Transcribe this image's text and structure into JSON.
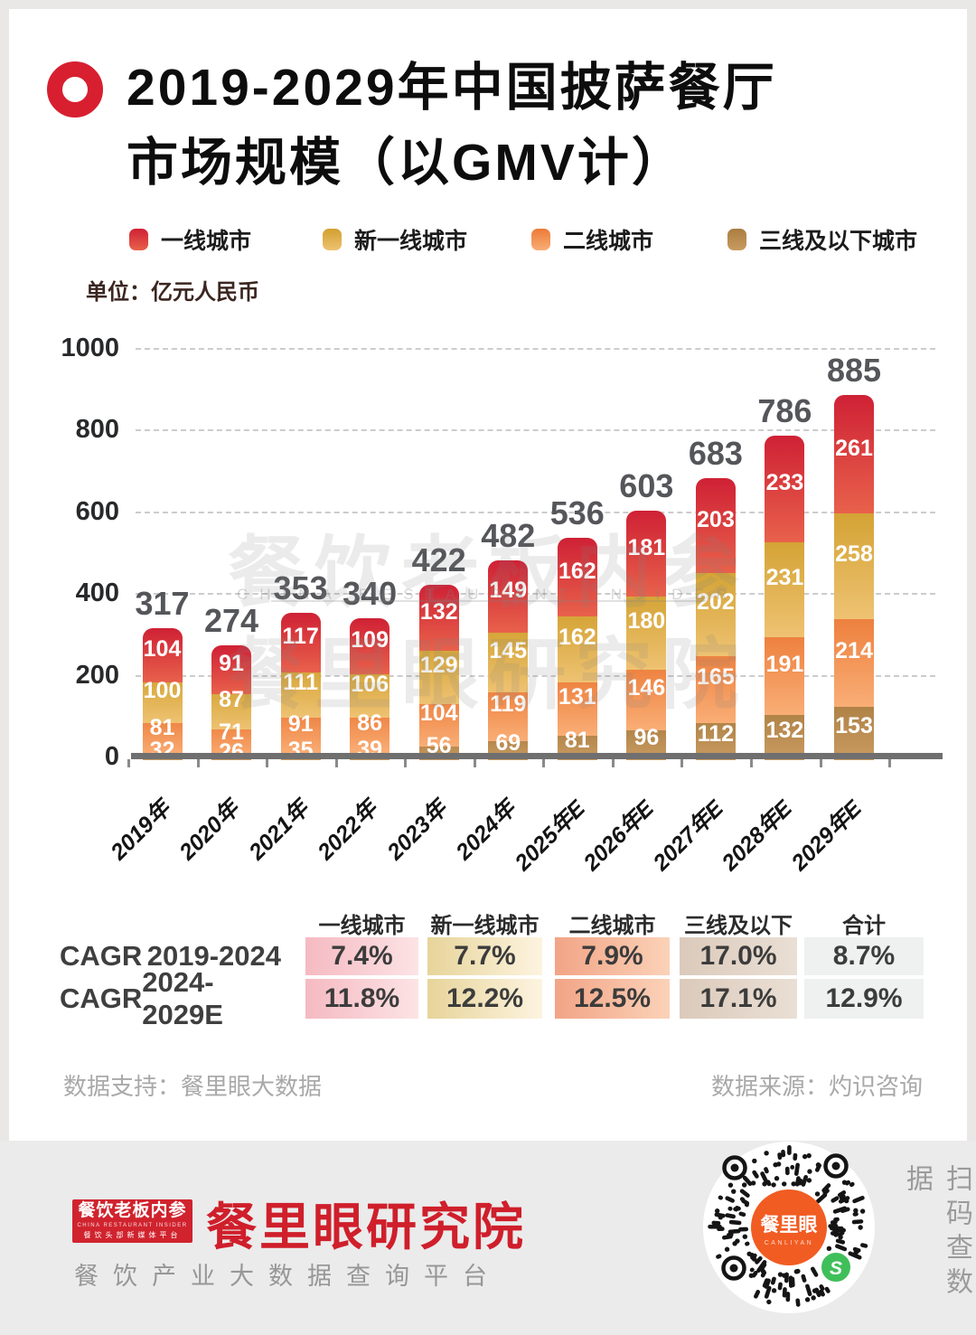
{
  "title": {
    "line1": "2019-2029年中国披萨餐厅",
    "line2": "市场规模（以GMV计）"
  },
  "unit_label": "单位：亿元人民币",
  "chart_data": {
    "type": "bar",
    "stacked": true,
    "title": "2019-2029年中国披萨餐厅市场规模（以GMV计）",
    "ylabel": "亿元人民币",
    "categories": [
      "2019年",
      "2020年",
      "2021年",
      "2022年",
      "2023年",
      "2024年",
      "2025年E",
      "2026年E",
      "2027年E",
      "2028年E",
      "2029年E"
    ],
    "series": [
      {
        "name": "一线城市",
        "color_top": "#cf2135",
        "color_bottom": "#e8614b",
        "values": [
          104,
          91,
          117,
          109,
          132,
          149,
          162,
          181,
          203,
          233,
          261
        ]
      },
      {
        "name": "新一线城市",
        "color_top": "#d1a02e",
        "color_bottom": "#eec272",
        "values": [
          100,
          87,
          111,
          106,
          129,
          145,
          162,
          180,
          202,
          231,
          258
        ]
      },
      {
        "name": "二线城市",
        "color_top": "#ec7a37",
        "color_bottom": "#f9ae76",
        "values": [
          81,
          71,
          91,
          86,
          104,
          119,
          131,
          146,
          165,
          191,
          214
        ]
      },
      {
        "name": "三线及以下城市",
        "color_top": "#aa7d41",
        "color_bottom": "#c99b61",
        "values": [
          32,
          26,
          35,
          39,
          56,
          69,
          81,
          96,
          112,
          132,
          153
        ]
      }
    ],
    "totals": [
      317,
      274,
      353,
      340,
      422,
      482,
      536,
      603,
      683,
      786,
      885
    ],
    "ylim": [
      0,
      1000
    ],
    "yticks": [
      0,
      200,
      400,
      600,
      800,
      1000
    ],
    "grid": "horizontal-dashed",
    "legend_position": "top"
  },
  "watermark": {
    "line1": "餐饮老板内参",
    "latin": "CHINA RESTAURANT INSIDER",
    "line2": "餐里眼研究院"
  },
  "table": {
    "headers": [
      "一线城市",
      "新一线城市",
      "二线城市",
      "三线及以下城市",
      "合计"
    ],
    "col_colors": [
      [
        "#f5bac2",
        "#fce3e5"
      ],
      [
        "#e7d49a",
        "#fdf4e0"
      ],
      [
        "#f2a486",
        "#fbd2b8"
      ],
      [
        "#dbcabb",
        "#eadfd5"
      ],
      [
        "#eef1ef",
        "#eef1ef"
      ]
    ],
    "rows": [
      {
        "prefix": "CAGR",
        "range": "2019-2024",
        "values": [
          "7.4%",
          "7.7%",
          "7.9%",
          "17.0%",
          "8.7%"
        ]
      },
      {
        "prefix": "CAGR",
        "range": "2024-2029E",
        "values": [
          "11.8%",
          "12.2%",
          "12.5%",
          "17.1%",
          "12.9%"
        ]
      }
    ]
  },
  "footer": {
    "left": "数据支持：餐里眼大数据",
    "right": "数据来源：灼识咨询"
  },
  "bottom_bar": {
    "logo_box": {
      "line1": "餐饮老板内参",
      "line2": "CHINA RESTAURANT INSIDER",
      "line3": "餐饮头部新媒体平台"
    },
    "brand": "餐里眼研究院",
    "tagline": "餐饮产业大数据查询平台",
    "qr": {
      "center_text": "餐里眼",
      "center_sub": "CANLIYAN"
    },
    "scan_label": "扫码查数据"
  },
  "colors": {
    "accent_red": "#d71f30",
    "brand_red": "#cf1f2b",
    "axis": "#6f6f6f",
    "grid": "#cccccc",
    "total_label": "#55565a",
    "band_bg": "#ebebeb",
    "qr_center": "#f15c22",
    "wechat_green": "#3fbf5a"
  }
}
